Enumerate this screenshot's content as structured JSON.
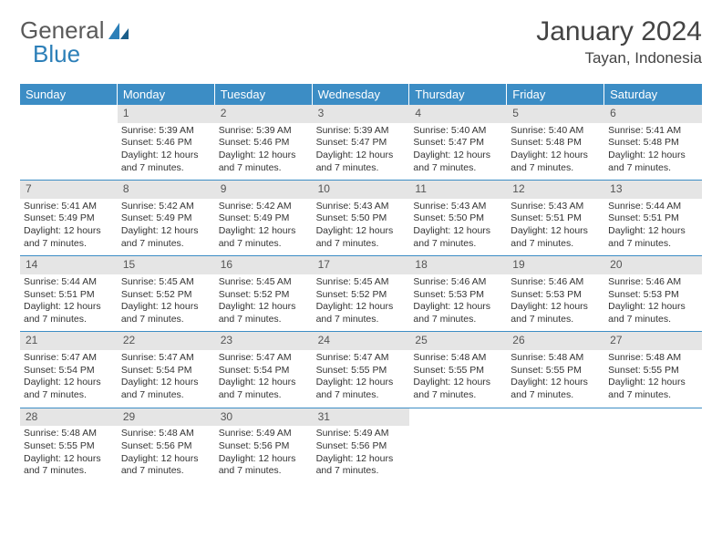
{
  "brand": {
    "part1": "General",
    "part2": "Blue"
  },
  "title": "January 2024",
  "location": "Tayan, Indonesia",
  "colors": {
    "header_bg": "#3c8dc5",
    "header_fg": "#ffffff",
    "daynum_bg": "#e5e5e5",
    "week_border": "#3c8dc5",
    "text": "#333333",
    "brand_gray": "#5a5a5a",
    "brand_blue": "#2c7fb8"
  },
  "weekdays": [
    "Sunday",
    "Monday",
    "Tuesday",
    "Wednesday",
    "Thursday",
    "Friday",
    "Saturday"
  ],
  "start_offset": 1,
  "days": [
    {
      "n": 1,
      "sunrise": "5:39 AM",
      "sunset": "5:46 PM",
      "daylight": "12 hours and 7 minutes."
    },
    {
      "n": 2,
      "sunrise": "5:39 AM",
      "sunset": "5:46 PM",
      "daylight": "12 hours and 7 minutes."
    },
    {
      "n": 3,
      "sunrise": "5:39 AM",
      "sunset": "5:47 PM",
      "daylight": "12 hours and 7 minutes."
    },
    {
      "n": 4,
      "sunrise": "5:40 AM",
      "sunset": "5:47 PM",
      "daylight": "12 hours and 7 minutes."
    },
    {
      "n": 5,
      "sunrise": "5:40 AM",
      "sunset": "5:48 PM",
      "daylight": "12 hours and 7 minutes."
    },
    {
      "n": 6,
      "sunrise": "5:41 AM",
      "sunset": "5:48 PM",
      "daylight": "12 hours and 7 minutes."
    },
    {
      "n": 7,
      "sunrise": "5:41 AM",
      "sunset": "5:49 PM",
      "daylight": "12 hours and 7 minutes."
    },
    {
      "n": 8,
      "sunrise": "5:42 AM",
      "sunset": "5:49 PM",
      "daylight": "12 hours and 7 minutes."
    },
    {
      "n": 9,
      "sunrise": "5:42 AM",
      "sunset": "5:49 PM",
      "daylight": "12 hours and 7 minutes."
    },
    {
      "n": 10,
      "sunrise": "5:43 AM",
      "sunset": "5:50 PM",
      "daylight": "12 hours and 7 minutes."
    },
    {
      "n": 11,
      "sunrise": "5:43 AM",
      "sunset": "5:50 PM",
      "daylight": "12 hours and 7 minutes."
    },
    {
      "n": 12,
      "sunrise": "5:43 AM",
      "sunset": "5:51 PM",
      "daylight": "12 hours and 7 minutes."
    },
    {
      "n": 13,
      "sunrise": "5:44 AM",
      "sunset": "5:51 PM",
      "daylight": "12 hours and 7 minutes."
    },
    {
      "n": 14,
      "sunrise": "5:44 AM",
      "sunset": "5:51 PM",
      "daylight": "12 hours and 7 minutes."
    },
    {
      "n": 15,
      "sunrise": "5:45 AM",
      "sunset": "5:52 PM",
      "daylight": "12 hours and 7 minutes."
    },
    {
      "n": 16,
      "sunrise": "5:45 AM",
      "sunset": "5:52 PM",
      "daylight": "12 hours and 7 minutes."
    },
    {
      "n": 17,
      "sunrise": "5:45 AM",
      "sunset": "5:52 PM",
      "daylight": "12 hours and 7 minutes."
    },
    {
      "n": 18,
      "sunrise": "5:46 AM",
      "sunset": "5:53 PM",
      "daylight": "12 hours and 7 minutes."
    },
    {
      "n": 19,
      "sunrise": "5:46 AM",
      "sunset": "5:53 PM",
      "daylight": "12 hours and 7 minutes."
    },
    {
      "n": 20,
      "sunrise": "5:46 AM",
      "sunset": "5:53 PM",
      "daylight": "12 hours and 7 minutes."
    },
    {
      "n": 21,
      "sunrise": "5:47 AM",
      "sunset": "5:54 PM",
      "daylight": "12 hours and 7 minutes."
    },
    {
      "n": 22,
      "sunrise": "5:47 AM",
      "sunset": "5:54 PM",
      "daylight": "12 hours and 7 minutes."
    },
    {
      "n": 23,
      "sunrise": "5:47 AM",
      "sunset": "5:54 PM",
      "daylight": "12 hours and 7 minutes."
    },
    {
      "n": 24,
      "sunrise": "5:47 AM",
      "sunset": "5:55 PM",
      "daylight": "12 hours and 7 minutes."
    },
    {
      "n": 25,
      "sunrise": "5:48 AM",
      "sunset": "5:55 PM",
      "daylight": "12 hours and 7 minutes."
    },
    {
      "n": 26,
      "sunrise": "5:48 AM",
      "sunset": "5:55 PM",
      "daylight": "12 hours and 7 minutes."
    },
    {
      "n": 27,
      "sunrise": "5:48 AM",
      "sunset": "5:55 PM",
      "daylight": "12 hours and 7 minutes."
    },
    {
      "n": 28,
      "sunrise": "5:48 AM",
      "sunset": "5:55 PM",
      "daylight": "12 hours and 7 minutes."
    },
    {
      "n": 29,
      "sunrise": "5:48 AM",
      "sunset": "5:56 PM",
      "daylight": "12 hours and 7 minutes."
    },
    {
      "n": 30,
      "sunrise": "5:49 AM",
      "sunset": "5:56 PM",
      "daylight": "12 hours and 7 minutes."
    },
    {
      "n": 31,
      "sunrise": "5:49 AM",
      "sunset": "5:56 PM",
      "daylight": "12 hours and 7 minutes."
    }
  ],
  "labels": {
    "sunrise": "Sunrise:",
    "sunset": "Sunset:",
    "daylight": "Daylight:"
  }
}
